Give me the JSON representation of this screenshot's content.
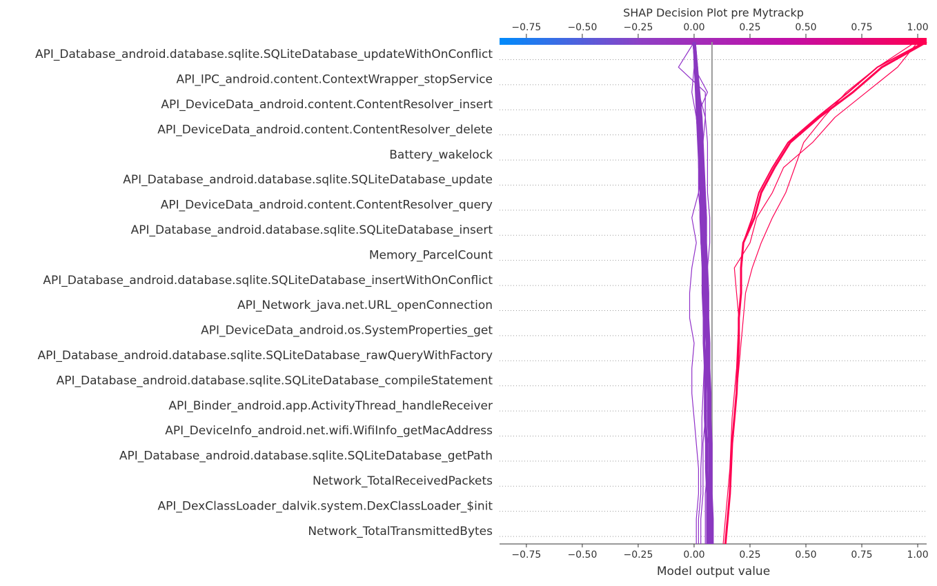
{
  "chart_data": {
    "type": "line",
    "title": "SHAP Decision Plot pre Mytrackp",
    "xlabel": "Model output value",
    "ylabel": "",
    "xlim": [
      -0.87,
      1.04
    ],
    "expected_value": 0.08,
    "xticks": [
      -0.75,
      -0.5,
      -0.25,
      0.0,
      0.25,
      0.5,
      0.75,
      1.0
    ],
    "xtick_labels": [
      "−0.75",
      "−0.50",
      "−0.25",
      "0.00",
      "0.25",
      "0.50",
      "0.75",
      "1.00"
    ],
    "grid": "dotted horizontal lines between features",
    "colorbar": {
      "position": "top",
      "colors": [
        "#008bfb",
        "#8f3fc4",
        "#c010a8",
        "#ff0052"
      ]
    },
    "features": [
      "API_Database_android.database.sqlite.SQLiteDatabase_updateWithOnConflict",
      "API_IPC_android.content.ContextWrapper_stopService",
      "API_DeviceData_android.content.ContentResolver_insert",
      "API_DeviceData_android.content.ContentResolver_delete",
      "Battery_wakelock",
      "API_Database_android.database.sqlite.SQLiteDatabase_update",
      "API_DeviceData_android.content.ContentResolver_query",
      "API_Database_android.database.sqlite.SQLiteDatabase_insert",
      "Memory_ParcelCount",
      "API_Database_android.database.sqlite.SQLiteDatabase_insertWithOnConflict",
      "API_Network_java.net.URL_openConnection",
      "API_DeviceData_android.os.SystemProperties_get",
      "API_Database_android.database.sqlite.SQLiteDatabase_rawQueryWithFactory",
      "API_Database_android.database.sqlite.SQLiteDatabase_compileStatement",
      "API_Binder_android.app.ActivityThread_handleReceiver",
      "API_DeviceInfo_android.net.wifi.WifiInfo_getMacAddress",
      "API_Database_android.database.sqlite.SQLiteDatabase_getPath",
      "Network_TotalReceivedPackets",
      "API_DexClassLoader_dalvik.system.DexClassLoader_$init",
      "Network_TotalTransmittedBytes"
    ],
    "series_note": "each series: cumulative model output at bottom of plot, then after each feature from bottom (Network_TotalTransmittedBytes) to top (updateWithOnConflict)",
    "series": [
      {
        "color": "#ff0052",
        "width": 3,
        "values": [
          0.14,
          0.15,
          0.16,
          0.165,
          0.17,
          0.18,
          0.19,
          0.195,
          0.2,
          0.2,
          0.21,
          0.21,
          0.22,
          0.27,
          0.3,
          0.36,
          0.43,
          0.56,
          0.71,
          0.84,
          1.04
        ]
      },
      {
        "color": "#ff0052",
        "width": 2,
        "values": [
          0.14,
          0.15,
          0.16,
          0.165,
          0.17,
          0.18,
          0.19,
          0.195,
          0.2,
          0.2,
          0.21,
          0.21,
          0.22,
          0.26,
          0.29,
          0.35,
          0.42,
          0.55,
          0.69,
          0.82,
          1.03
        ]
      },
      {
        "color": "#ff0052",
        "width": 1.2,
        "values": [
          0.13,
          0.14,
          0.15,
          0.16,
          0.165,
          0.17,
          0.18,
          0.19,
          0.195,
          0.2,
          0.19,
          0.18,
          0.25,
          0.28,
          0.35,
          0.4,
          0.53,
          0.63,
          0.77,
          0.91,
          1.0
        ]
      },
      {
        "color": "#ff0052",
        "width": 1.2,
        "values": [
          0.14,
          0.15,
          0.16,
          0.165,
          0.17,
          0.18,
          0.19,
          0.2,
          0.21,
          0.22,
          0.23,
          0.26,
          0.3,
          0.35,
          0.41,
          0.45,
          0.49,
          0.58,
          0.68,
          0.82,
          0.99
        ]
      },
      {
        "color": "#9030c8",
        "width": 1.2,
        "values": [
          0.02,
          0.02,
          0.03,
          0.03,
          0.035,
          0.035,
          0.04,
          0.045,
          0.045,
          0.05,
          0.05,
          0.06,
          0.07,
          0.07,
          0.06,
          0.06,
          0.06,
          0.05,
          0.05,
          -0.07,
          0.0
        ]
      },
      {
        "color": "#9030c8",
        "width": 1.2,
        "values": [
          0.01,
          0.01,
          0.02,
          0.02,
          0.01,
          0.0,
          -0.01,
          -0.01,
          0.0,
          -0.02,
          -0.02,
          -0.01,
          0.01,
          -0.01,
          0.02,
          0.03,
          0.04,
          0.05,
          0.02,
          0.0,
          0.0
        ]
      },
      {
        "color": "#9030c8",
        "width": 1.2,
        "values": [
          0.03,
          0.03,
          0.04,
          0.04,
          0.04,
          0.05,
          0.05,
          0.06,
          0.06,
          0.06,
          0.05,
          0.04,
          0.04,
          0.03,
          0.03,
          0.02,
          0.02,
          0.01,
          -0.01,
          0.0,
          0.0
        ]
      },
      {
        "color": "#9030c8",
        "width": 1.2,
        "values": [
          0.05,
          0.05,
          0.05,
          0.06,
          0.06,
          0.07,
          0.07,
          0.07,
          0.06,
          0.05,
          0.04,
          0.04,
          0.03,
          0.03,
          0.02,
          0.02,
          0.02,
          0.01,
          0.06,
          0.0,
          0.0
        ]
      },
      {
        "color": "#8a38c0",
        "width": 5,
        "values": [
          0.07,
          0.07,
          0.07,
          0.07,
          0.07,
          0.065,
          0.065,
          0.06,
          0.06,
          0.055,
          0.05,
          0.05,
          0.045,
          0.04,
          0.04,
          0.035,
          0.03,
          0.02,
          0.015,
          0.01,
          0.0
        ]
      },
      {
        "color": "#8a38c0",
        "width": 5,
        "values": [
          0.08,
          0.08,
          0.075,
          0.075,
          0.075,
          0.07,
          0.07,
          0.065,
          0.065,
          0.06,
          0.06,
          0.055,
          0.05,
          0.05,
          0.045,
          0.04,
          0.035,
          0.03,
          0.02,
          0.01,
          0.0
        ]
      },
      {
        "color": "#8a38c0",
        "width": 4,
        "values": [
          0.06,
          0.06,
          0.06,
          0.055,
          0.055,
          0.05,
          0.05,
          0.05,
          0.045,
          0.045,
          0.04,
          0.04,
          0.035,
          0.03,
          0.03,
          0.025,
          0.02,
          0.015,
          0.01,
          0.005,
          0.0
        ]
      }
    ]
  }
}
